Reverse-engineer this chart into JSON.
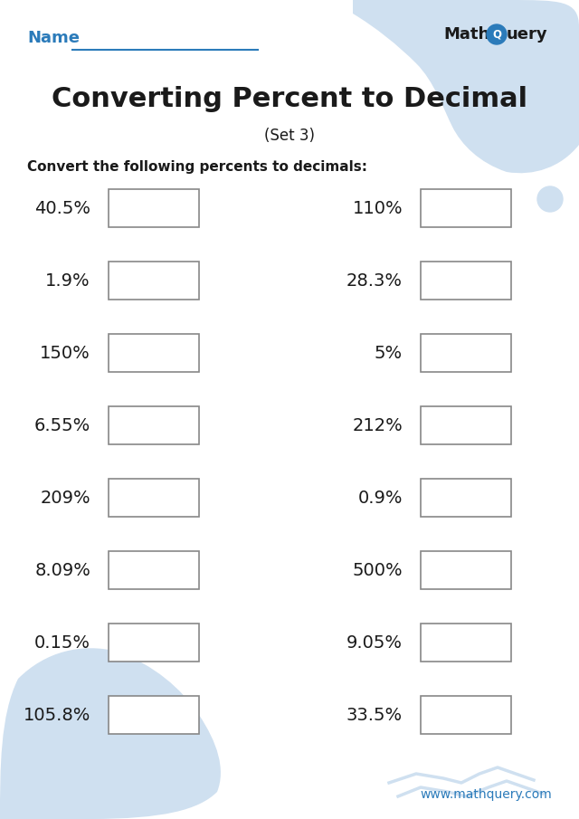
{
  "title": "Converting Percent to Decimal",
  "subtitle": "(Set 3)",
  "instruction": "Convert the following percents to decimals:",
  "name_label": "Name",
  "left_column": [
    "40.5%",
    "1.9%",
    "150%",
    "6.55%",
    "209%",
    "8.09%",
    "0.15%",
    "105.8%"
  ],
  "right_column": [
    "110%",
    "28.3%",
    "5%",
    "212%",
    "0.9%",
    "500%",
    "9.05%",
    "33.5%"
  ],
  "bg_color": "#ffffff",
  "title_color": "#1a1a1a",
  "subtitle_color": "#1a1a1a",
  "instruction_color": "#1a1a1a",
  "name_color": "#2b7bba",
  "name_line_color": "#2b7bba",
  "logo_math_color": "#1a1a1a",
  "logo_q_color": "#2b7bba",
  "website_color": "#2b7bba",
  "box_edge_color": "#888888",
  "box_fill_color": "#ffffff",
  "light_blue_bg": "#cfe0f0",
  "fig_width": 6.4,
  "fig_height": 9.05,
  "dpi": 100
}
